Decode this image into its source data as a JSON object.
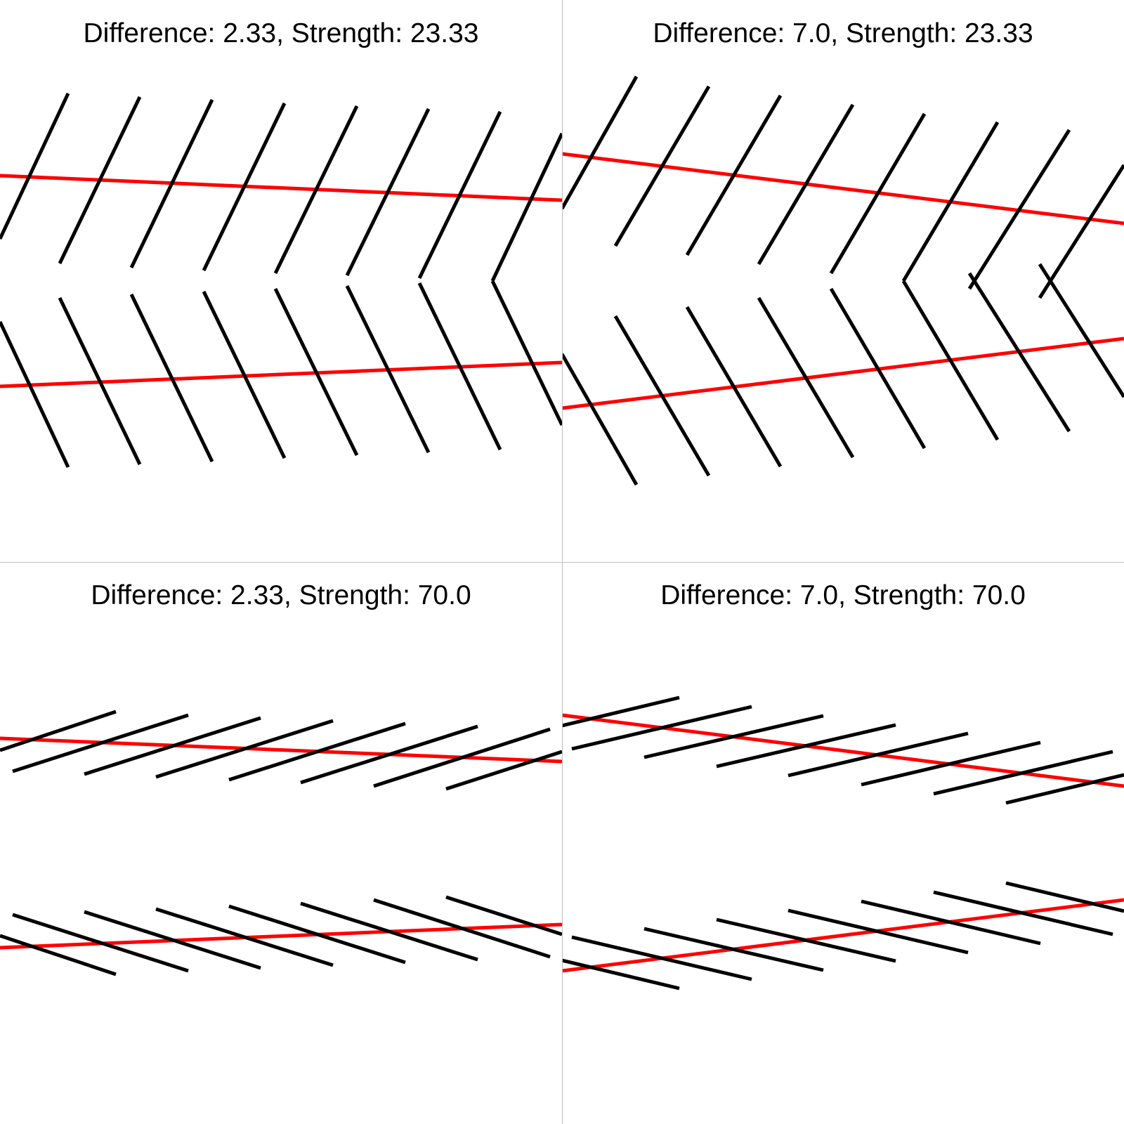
{
  "colors": {
    "lines": "#000000",
    "red": "#ff0000",
    "divider": "#bdbdbd"
  },
  "panels": [
    {
      "title": "Difference: 2.33, Strength: 23.33"
    },
    {
      "title": "Difference: 7.0, Strength: 23.33"
    },
    {
      "title": "Difference: 2.33, Strength: 70.0"
    },
    {
      "title": "Difference: 7.0, Strength: 70.0"
    }
  ]
}
